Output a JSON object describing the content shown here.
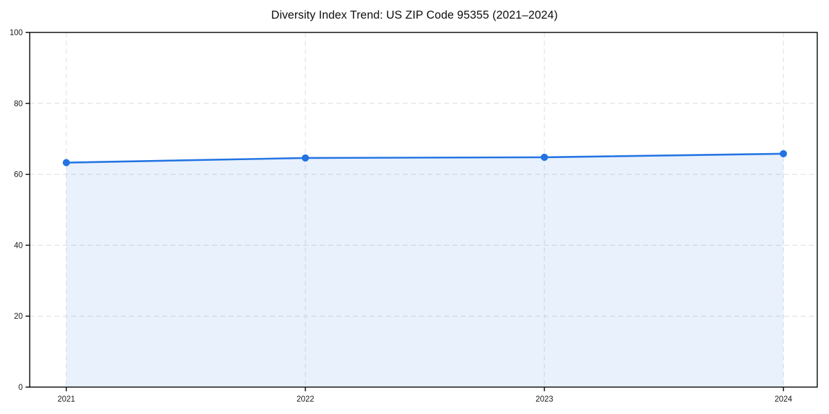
{
  "chart": {
    "title": "Diversity Index Trend: US ZIP Code 95355 (2021–2024)"
  },
  "chart_data": {
    "type": "area",
    "title": "Diversity Index Trend: US ZIP Code 95355 (2021–2024)",
    "categories": [
      "2021",
      "2022",
      "2023",
      "2024"
    ],
    "values": [
      63.3,
      64.6,
      64.8,
      65.8
    ],
    "series_name": "Diversity Index",
    "xlabel": "",
    "ylabel": "",
    "ylim": [
      0,
      100
    ],
    "yticks": [
      0,
      20,
      40,
      60,
      80,
      100
    ],
    "ytick_labels": [
      "0",
      "20",
      "40",
      "60",
      "80",
      "100"
    ],
    "grid": true,
    "grid_style": "dashed",
    "legend": "none",
    "colors": {
      "line": "#2273e3",
      "marker": "#2273e3",
      "fill": "#2273e3",
      "fill_opacity": 0.1,
      "grid": "#dcdcdc",
      "spine": "#000000",
      "tick_text": "#1a1a1a",
      "title_text": "#0d0d0d",
      "background": "#ffffff"
    }
  }
}
